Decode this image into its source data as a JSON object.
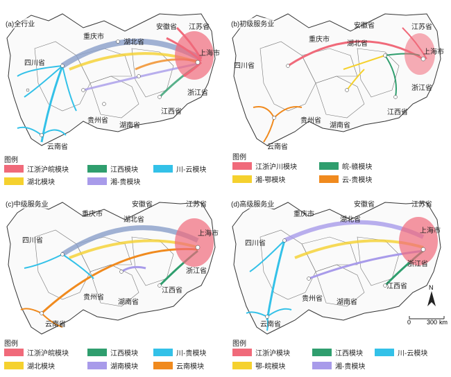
{
  "panels": [
    {
      "title": "(a)全行业",
      "labels": {
        "anhui": "安徽省",
        "jiangsu": "江苏省",
        "chongqing": "重庆市",
        "hubei": "湖北省",
        "sichuan": "四川省",
        "shanghai": "上海市",
        "zhejiang": "浙江省",
        "guizhou": "贵州省",
        "hunan": "湖南省",
        "jiangxi": "江西省",
        "yunnan": "云南省"
      },
      "legend_title": "图例",
      "legend": [
        {
          "label": "江浙沪皖模块",
          "color": "#f06a7a"
        },
        {
          "label": "江西模块",
          "color": "#2f9e6e"
        },
        {
          "label": "川-云模块",
          "color": "#33c1e8"
        },
        {
          "label": "湖北模块",
          "color": "#f5d12e"
        },
        {
          "label": "湘-贵模块",
          "color": "#a89bea"
        }
      ]
    },
    {
      "title": "(b)初级服务业",
      "labels": {
        "anhui": "安徽省",
        "jiangsu": "江苏省",
        "chongqing": "重庆市",
        "hubei": "湖北省",
        "sichuan": "四川省",
        "shanghai": "上海市",
        "zhejiang": "浙江省",
        "guizhou": "贵州省",
        "hunan": "湖南省",
        "jiangxi": "江西省",
        "yunnan": "云南省"
      },
      "legend_title": "图例",
      "legend": [
        {
          "label": "江浙沪川模块",
          "color": "#f06a7a"
        },
        {
          "label": "皖-赣模块",
          "color": "#2f9e6e"
        },
        {
          "label": "湘-鄂模块",
          "color": "#f5d12e"
        },
        {
          "label": "云-贵模块",
          "color": "#f08a1e"
        }
      ]
    },
    {
      "title": "(c)中级服务业",
      "labels": {
        "anhui": "安徽省",
        "jiangsu": "江苏省",
        "chongqing": "重庆市",
        "hubei": "湖北省",
        "sichuan": "四川省",
        "shanghai": "上海市",
        "zhejiang": "浙江省",
        "guizhou": "贵州省",
        "hunan": "湖南省",
        "jiangxi": "江西省",
        "yunnan": "云南省"
      },
      "legend_title": "图例",
      "legend": [
        {
          "label": "江浙沪皖模块",
          "color": "#f06a7a"
        },
        {
          "label": "江西模块",
          "color": "#2f9e6e"
        },
        {
          "label": "川-贵模块",
          "color": "#33c1e8"
        },
        {
          "label": "湖北模块",
          "color": "#f5d12e"
        },
        {
          "label": "湖南模块",
          "color": "#a89bea"
        },
        {
          "label": "云南模块",
          "color": "#f08a1e"
        }
      ]
    },
    {
      "title": "(d)高级服务业",
      "labels": {
        "anhui": "安徽省",
        "jiangsu": "江苏省",
        "chongqing": "重庆市",
        "hubei": "湖北省",
        "sichuan": "四川省",
        "shanghai": "上海市",
        "zhejiang": "浙江省",
        "guizhou": "贵州省",
        "hunan": "湖南省",
        "jiangxi": "江西省",
        "yunnan": "云南省"
      },
      "legend_title": "图例",
      "legend": [
        {
          "label": "江浙沪模块",
          "color": "#f06a7a"
        },
        {
          "label": "江西模块",
          "color": "#2f9e6e"
        },
        {
          "label": "川-云模块",
          "color": "#33c1e8"
        },
        {
          "label": "鄂-皖模块",
          "color": "#f5d12e"
        },
        {
          "label": "湘-贵模块",
          "color": "#a89bea"
        }
      ]
    }
  ],
  "scale": {
    "zero": "0",
    "value": "300",
    "unit": "km",
    "north": "N"
  }
}
